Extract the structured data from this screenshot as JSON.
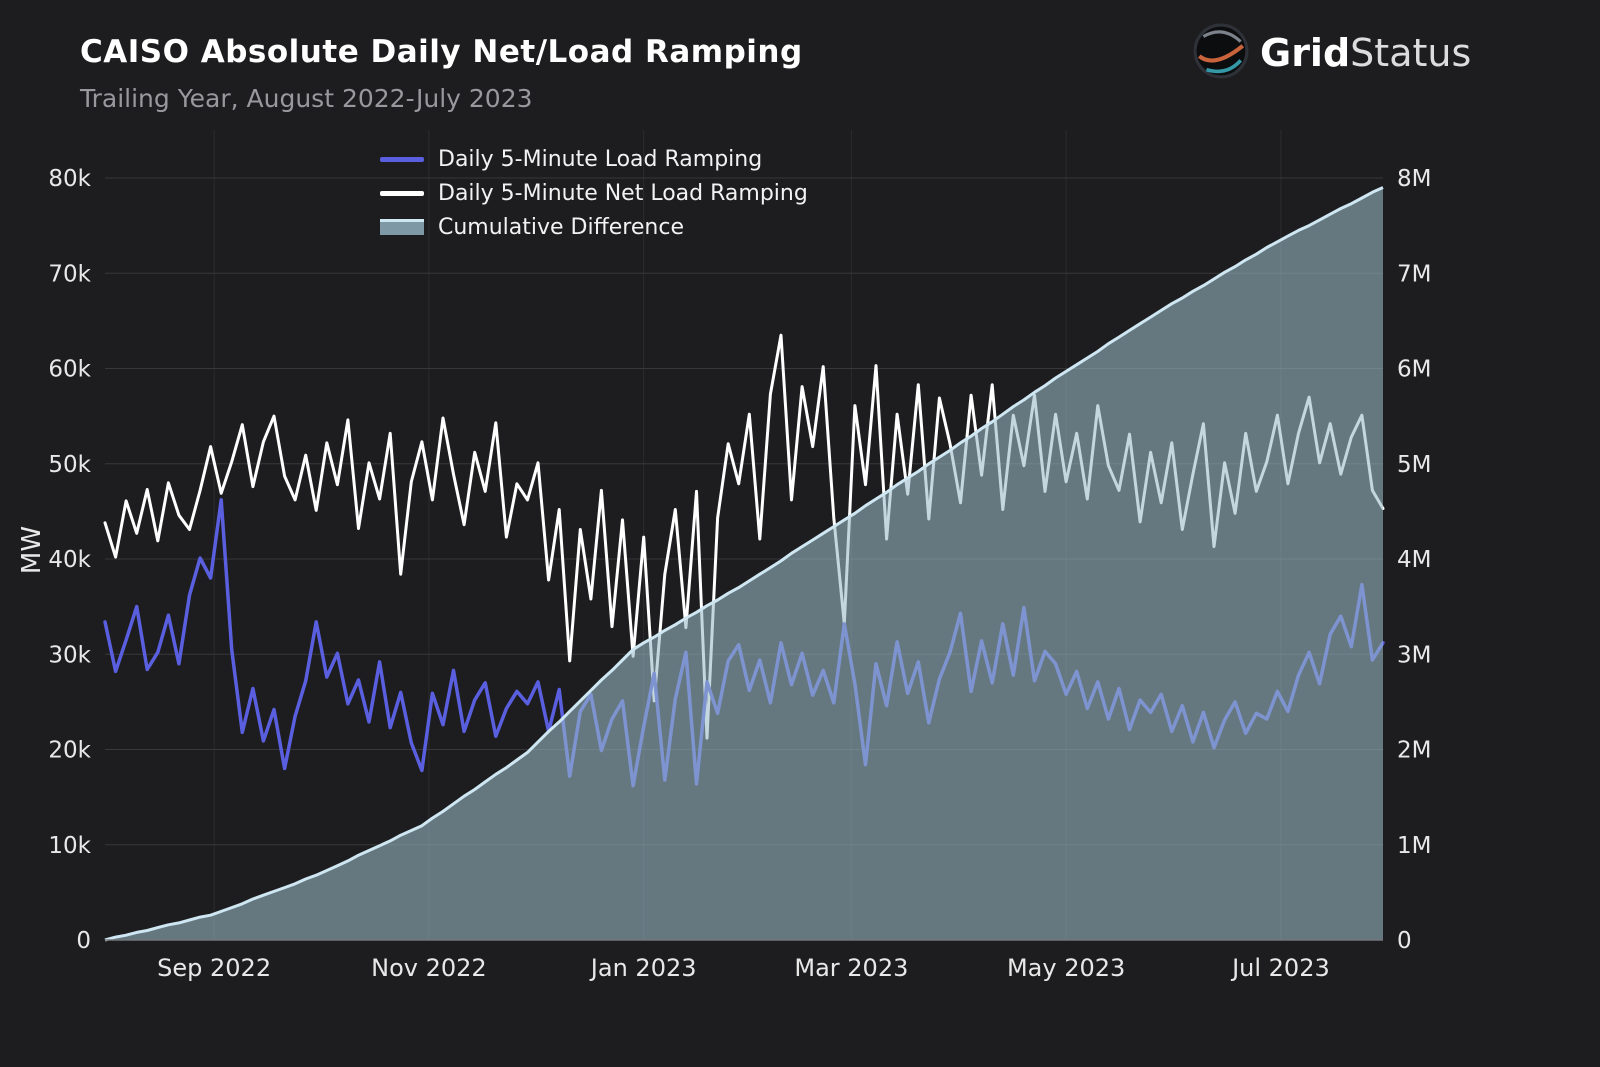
{
  "header": {
    "title": "CAISO Absolute Daily Net/Load Ramping",
    "subtitle": "Trailing Year, August 2022-July 2023",
    "brand_bold": "Grid",
    "brand_light": "Status"
  },
  "axes": {
    "y_left_label": "MW"
  },
  "legend": [
    {
      "label": "Daily 5-Minute Load Ramping",
      "color": "#5a5fe0"
    },
    {
      "label": "Daily 5-Minute Net Load Ramping",
      "color": "#ffffff"
    },
    {
      "label": "Cumulative Difference",
      "color": "#7e98a5"
    }
  ],
  "chart_data": {
    "type": "line",
    "title": "CAISO Absolute Daily Net/Load Ramping",
    "subtitle": "Trailing Year, August 2022-July 2023",
    "grid": true,
    "legend_position": "top-left-inside",
    "x_unit": "days since 2022-08-01, one sample every 3 days",
    "step_days": 3,
    "total_days": 363,
    "y_left": {
      "label": "MW",
      "range": [
        0,
        80000
      ]
    },
    "y_right": {
      "label": "",
      "range": [
        0,
        8000000
      ]
    },
    "y_left_ticks": [
      {
        "value": 0,
        "label": "0"
      },
      {
        "value": 10000,
        "label": "10k"
      },
      {
        "value": 20000,
        "label": "20k"
      },
      {
        "value": 30000,
        "label": "30k"
      },
      {
        "value": 40000,
        "label": "40k"
      },
      {
        "value": 50000,
        "label": "50k"
      },
      {
        "value": 60000,
        "label": "60k"
      },
      {
        "value": 70000,
        "label": "70k"
      },
      {
        "value": 80000,
        "label": "80k"
      }
    ],
    "y_right_ticks": [
      {
        "value": 0,
        "label": "0"
      },
      {
        "value": 1000000,
        "label": "1M"
      },
      {
        "value": 2000000,
        "label": "2M"
      },
      {
        "value": 3000000,
        "label": "3M"
      },
      {
        "value": 4000000,
        "label": "4M"
      },
      {
        "value": 5000000,
        "label": "5M"
      },
      {
        "value": 6000000,
        "label": "6M"
      },
      {
        "value": 7000000,
        "label": "7M"
      },
      {
        "value": 8000000,
        "label": "8M"
      }
    ],
    "x_ticks": [
      {
        "day": 31,
        "label": "Sep 2022"
      },
      {
        "day": 92,
        "label": "Nov 2022"
      },
      {
        "day": 153,
        "label": "Jan 2023"
      },
      {
        "day": 212,
        "label": "Mar 2023"
      },
      {
        "day": 273,
        "label": "May 2023"
      },
      {
        "day": 334,
        "label": "Jul 2023"
      }
    ],
    "series": [
      {
        "id": "load",
        "name": "Daily 5-Minute Load Ramping",
        "axis": "left",
        "color": "#5a5fe0",
        "width": 3.5,
        "unit": "MW",
        "scale": 1000,
        "values": [
          33.4,
          28.2,
          31.5,
          35.0,
          28.4,
          30.2,
          34.1,
          29.0,
          36.2,
          40.1,
          38.0,
          46.2,
          30.5,
          21.8,
          26.4,
          20.9,
          24.2,
          18.0,
          23.5,
          27.2,
          33.4,
          27.6,
          30.1,
          24.8,
          27.3,
          22.9,
          29.2,
          22.3,
          26.0,
          20.7,
          17.8,
          25.9,
          22.6,
          28.3,
          21.9,
          25.2,
          27.0,
          21.4,
          24.3,
          26.1,
          24.8,
          27.1,
          21.9,
          26.3,
          17.2,
          24.0,
          25.8,
          19.9,
          23.2,
          25.1,
          16.2,
          22.4,
          28.0,
          16.8,
          25.3,
          30.2,
          16.4,
          27.1,
          23.8,
          29.3,
          31.0,
          26.2,
          29.4,
          24.9,
          31.2,
          26.8,
          30.1,
          25.7,
          28.3,
          24.9,
          33.2,
          26.9,
          18.4,
          29.0,
          24.6,
          31.3,
          25.9,
          29.2,
          22.8,
          27.4,
          30.2,
          34.3,
          26.1,
          31.4,
          27.0,
          33.2,
          27.8,
          34.9,
          27.2,
          30.3,
          29.0,
          25.8,
          28.2,
          24.3,
          27.1,
          23.2,
          26.4,
          22.1,
          25.2,
          23.9,
          25.8,
          21.9,
          24.6,
          20.8,
          23.9,
          20.2,
          23.1,
          25.0,
          21.7,
          23.8,
          23.2,
          26.1,
          24.0,
          27.8,
          30.2,
          26.9,
          32.1,
          34.0,
          30.8,
          37.3,
          29.4,
          31.2
        ]
      },
      {
        "id": "net",
        "name": "Daily 5-Minute Net Load Ramping",
        "axis": "left",
        "color": "#ffffff",
        "width": 3,
        "unit": "MW",
        "scale": 1000,
        "values": [
          43.8,
          40.2,
          46.1,
          42.7,
          47.3,
          41.9,
          48.0,
          44.6,
          43.1,
          47.2,
          51.8,
          46.9,
          50.2,
          54.1,
          47.6,
          52.3,
          55.0,
          48.7,
          46.2,
          50.9,
          45.1,
          52.2,
          47.8,
          54.6,
          43.2,
          50.1,
          46.3,
          53.2,
          38.4,
          48.1,
          52.3,
          46.2,
          54.8,
          48.9,
          43.6,
          51.2,
          47.1,
          54.3,
          42.3,
          47.9,
          46.2,
          50.1,
          37.8,
          45.2,
          29.3,
          43.1,
          35.8,
          47.2,
          32.9,
          44.1,
          29.8,
          42.3,
          25.1,
          38.4,
          45.2,
          32.8,
          47.1,
          21.2,
          44.3,
          52.1,
          47.9,
          55.2,
          42.1,
          57.3,
          63.5,
          46.2,
          58.1,
          51.8,
          60.2,
          44.3,
          33.2,
          56.1,
          47.8,
          60.3,
          42.1,
          55.2,
          46.8,
          58.3,
          44.2,
          56.9,
          52.1,
          45.9,
          57.2,
          48.8,
          58.3,
          45.2,
          55.1,
          49.8,
          57.2,
          47.1,
          55.2,
          48.1,
          53.2,
          46.3,
          56.1,
          49.8,
          47.2,
          53.1,
          43.9,
          51.2,
          45.9,
          52.2,
          43.1,
          48.9,
          54.2,
          41.3,
          50.1,
          44.8,
          53.2,
          47.1,
          50.2,
          55.1,
          47.9,
          53.2,
          57.0,
          50.1,
          54.2,
          48.9,
          52.8,
          55.1,
          47.2,
          45.3
        ]
      },
      {
        "id": "cumulative",
        "name": "Cumulative Difference",
        "axis": "right",
        "type": "area",
        "color": "#cfe7f2",
        "fill_rgba": "rgba(154,186,199,0.58)",
        "width": 3,
        "unit": "MW",
        "scale": 1000000,
        "values": [
          0,
          0.03,
          0.05,
          0.08,
          0.1,
          0.13,
          0.16,
          0.18,
          0.21,
          0.24,
          0.26,
          0.3,
          0.34,
          0.38,
          0.43,
          0.47,
          0.51,
          0.55,
          0.59,
          0.64,
          0.68,
          0.73,
          0.78,
          0.83,
          0.89,
          0.94,
          0.99,
          1.04,
          1.1,
          1.15,
          1.2,
          1.28,
          1.35,
          1.43,
          1.51,
          1.58,
          1.66,
          1.74,
          1.81,
          1.89,
          1.97,
          2.08,
          2.19,
          2.29,
          2.4,
          2.51,
          2.62,
          2.73,
          2.83,
          2.94,
          3.05,
          3.12,
          3.18,
          3.25,
          3.31,
          3.38,
          3.44,
          3.51,
          3.57,
          3.64,
          3.7,
          3.77,
          3.84,
          3.91,
          3.98,
          4.06,
          4.13,
          4.2,
          4.27,
          4.34,
          4.41,
          4.48,
          4.56,
          4.63,
          4.7,
          4.78,
          4.85,
          4.92,
          5.0,
          5.07,
          5.14,
          5.22,
          5.29,
          5.37,
          5.44,
          5.52,
          5.6,
          5.67,
          5.75,
          5.82,
          5.9,
          5.97,
          6.04,
          6.11,
          6.18,
          6.26,
          6.33,
          6.4,
          6.47,
          6.54,
          6.61,
          6.68,
          6.74,
          6.81,
          6.87,
          6.94,
          7.01,
          7.07,
          7.14,
          7.2,
          7.27,
          7.33,
          7.39,
          7.45,
          7.5,
          7.56,
          7.62,
          7.68,
          7.73,
          7.79,
          7.85,
          7.9
        ]
      }
    ]
  }
}
